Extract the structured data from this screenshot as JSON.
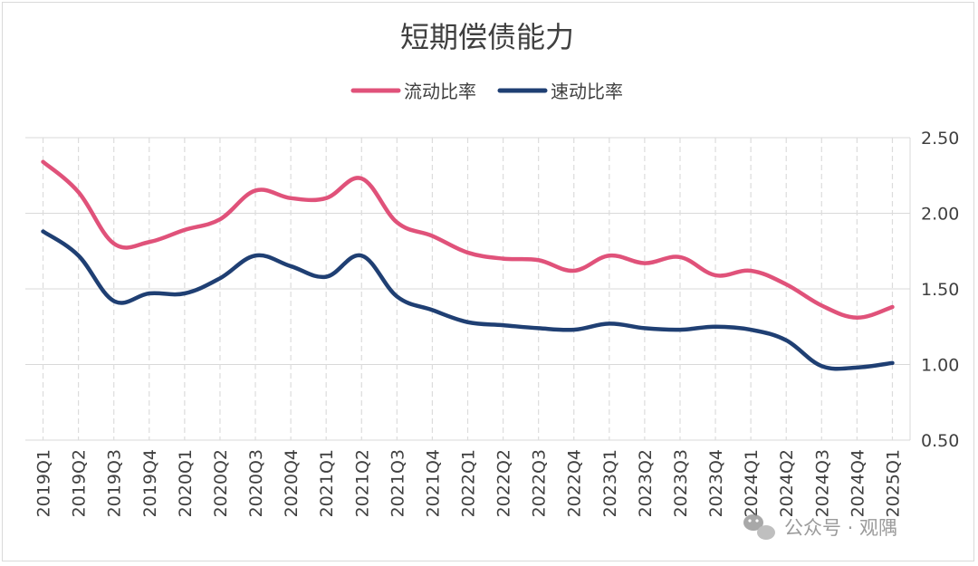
{
  "chart_data": {
    "type": "line",
    "title": "短期偿债能力",
    "xlabel": "",
    "ylabel": "",
    "categories": [
      "2019Q1",
      "2019Q2",
      "2019Q3",
      "2019Q4",
      "2020Q1",
      "2020Q2",
      "2020Q3",
      "2020Q4",
      "2021Q1",
      "2021Q2",
      "2021Q3",
      "2021Q4",
      "2022Q1",
      "2022Q2",
      "2022Q3",
      "2022Q4",
      "2023Q1",
      "2023Q2",
      "2023Q3",
      "2023Q4",
      "2024Q1",
      "2024Q2",
      "2024Q3",
      "2024Q4",
      "2025Q1"
    ],
    "series": [
      {
        "name": "流动比率",
        "color": "#e0527a",
        "values": [
          2.34,
          2.14,
          1.8,
          1.81,
          1.89,
          1.96,
          2.15,
          2.1,
          2.1,
          2.23,
          1.94,
          1.85,
          1.74,
          1.7,
          1.69,
          1.62,
          1.72,
          1.67,
          1.71,
          1.59,
          1.62,
          1.53,
          1.39,
          1.31,
          1.38
        ]
      },
      {
        "name": "速动比率",
        "color": "#1f3f73",
        "values": [
          1.88,
          1.72,
          1.42,
          1.47,
          1.47,
          1.57,
          1.72,
          1.65,
          1.58,
          1.72,
          1.45,
          1.36,
          1.28,
          1.26,
          1.24,
          1.23,
          1.27,
          1.24,
          1.23,
          1.25,
          1.23,
          1.16,
          0.99,
          0.98,
          1.01
        ]
      }
    ],
    "y_axis": {
      "position": "right",
      "min": 0.5,
      "max": 2.5,
      "ticks": [
        "0.50",
        "1.00",
        "1.50",
        "2.00",
        "2.50"
      ]
    },
    "grid": {
      "horizontal": true,
      "vertical_dashed": true
    },
    "legend": {
      "placement": "top-center"
    }
  },
  "watermark": {
    "text": "公众号 · 观隅",
    "icon": "wechat-icon"
  }
}
